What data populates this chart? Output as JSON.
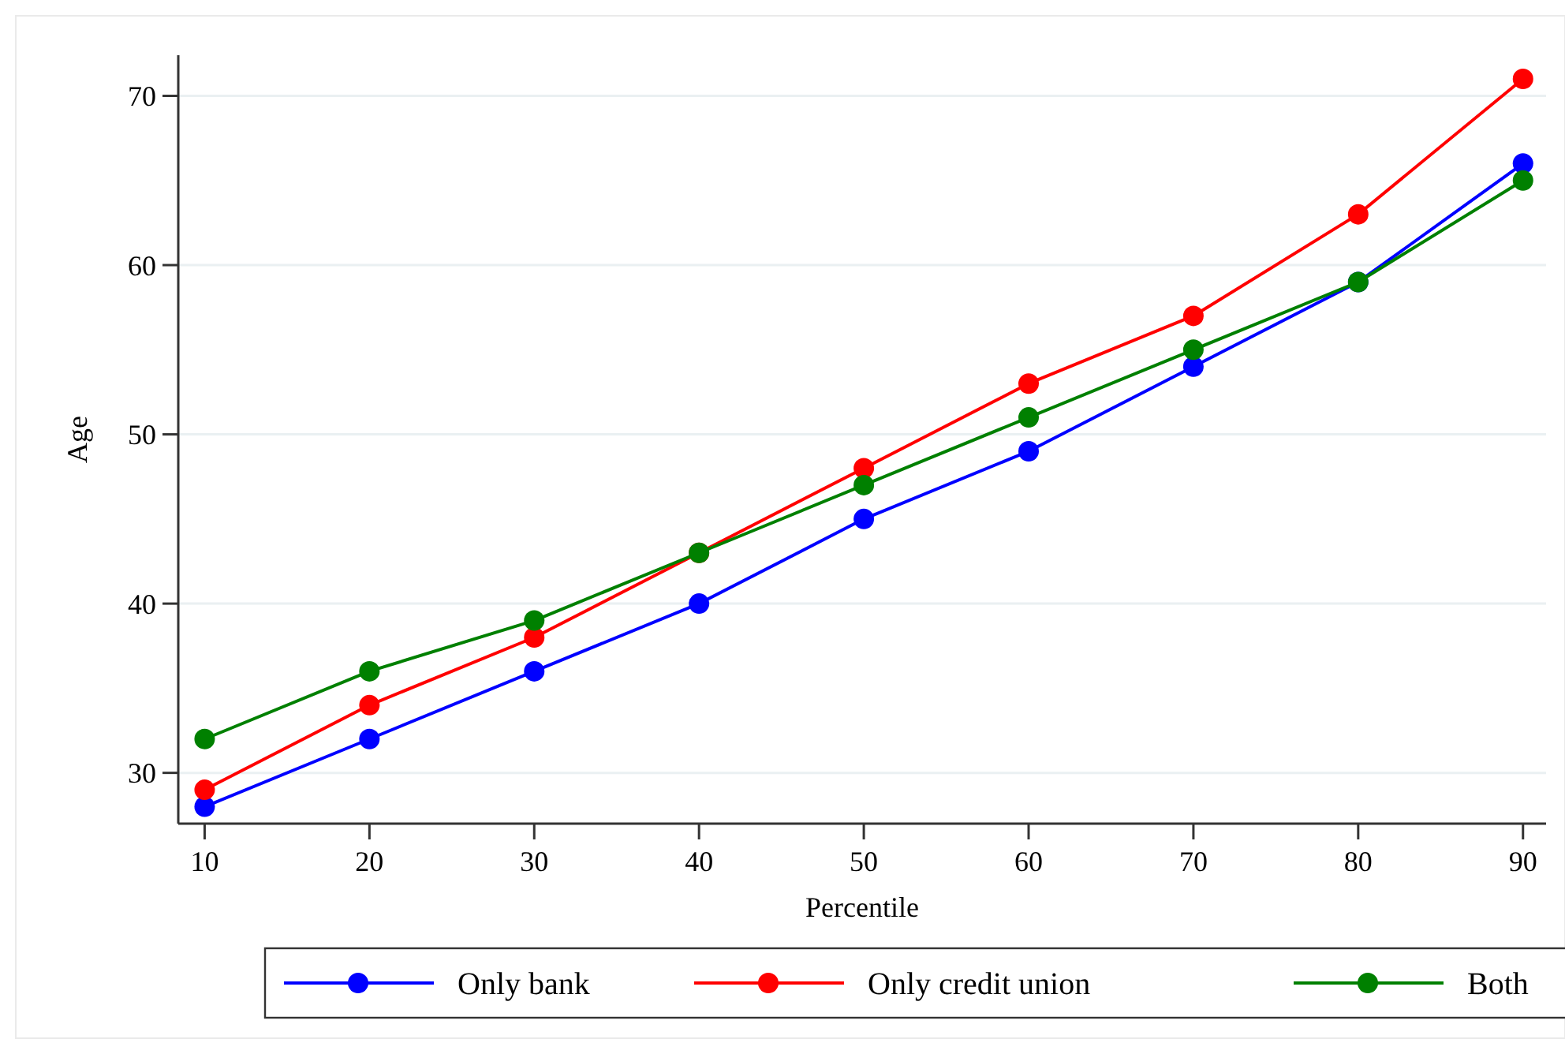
{
  "chart_data": {
    "type": "line",
    "xlabel": "Percentile",
    "ylabel": "Age",
    "x": [
      10,
      20,
      30,
      40,
      50,
      60,
      70,
      80,
      90
    ],
    "series": [
      {
        "name": "Only bank",
        "color": "#0000ff",
        "values": [
          28,
          32,
          36,
          40,
          45,
          49,
          54,
          59,
          66
        ]
      },
      {
        "name": "Only credit union",
        "color": "#ff0000",
        "values": [
          29,
          34,
          38,
          43,
          48,
          53,
          57,
          63,
          71
        ]
      },
      {
        "name": "Both",
        "color": "#008000",
        "values": [
          32,
          36,
          39,
          43,
          47,
          51,
          55,
          59,
          65
        ]
      }
    ],
    "xlim": [
      8.4,
      91.4
    ],
    "xticks": [
      10,
      20,
      30,
      40,
      50,
      60,
      70,
      80,
      90
    ],
    "ylim": [
      27,
      72.4
    ],
    "yticks": [
      30,
      40,
      50,
      60,
      70
    ],
    "grid": "y",
    "legend": "bottom",
    "marker": "circle",
    "line_style": "solid"
  }
}
